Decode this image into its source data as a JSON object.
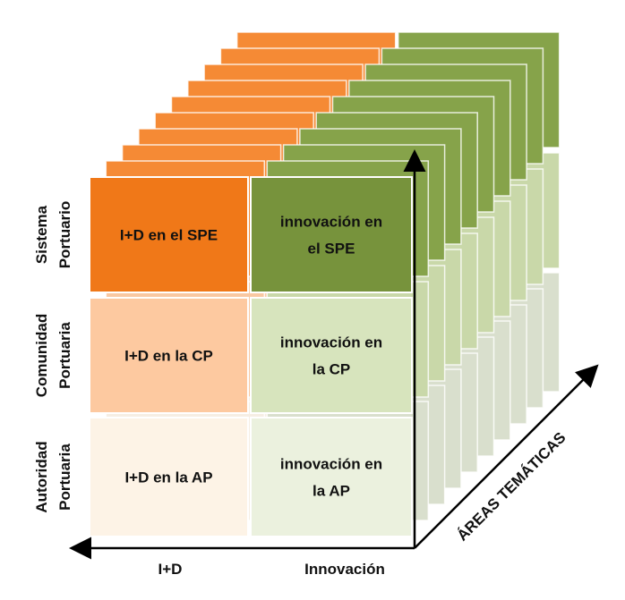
{
  "rows": [
    {
      "label": [
        "Sistema",
        "Portuario"
      ],
      "cells": [
        [
          "I+D en el SPE"
        ],
        [
          "innovación en",
          "el SPE"
        ]
      ]
    },
    {
      "label": [
        "Comunidad",
        "Portuaria"
      ],
      "cells": [
        [
          "I+D en la CP"
        ],
        [
          "innovación en",
          "la CP"
        ]
      ]
    },
    {
      "label": [
        "Autoridad",
        "Portuaria"
      ],
      "cells": [
        [
          "I+D en la AP"
        ],
        [
          "innovación en",
          "la AP"
        ]
      ]
    }
  ],
  "columns": [
    "I+D",
    "Innovación"
  ],
  "depth_axis": "ÁREAS TEMÁTICAS"
}
